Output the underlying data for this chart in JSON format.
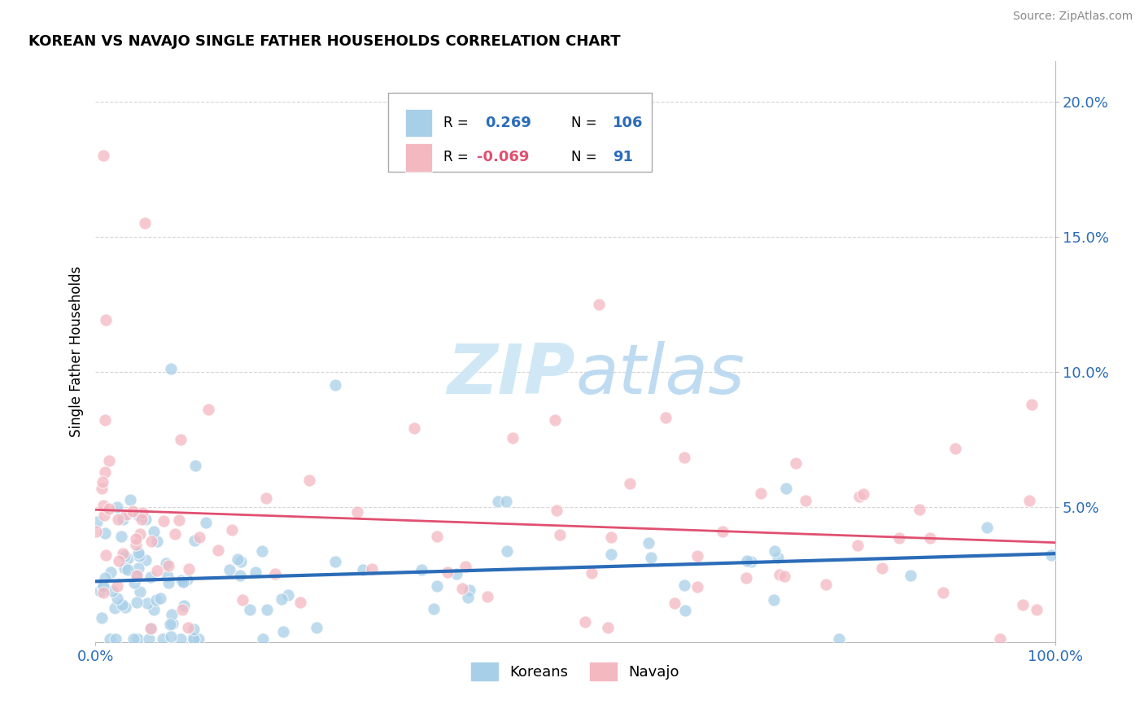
{
  "title": "KOREAN VS NAVAJO SINGLE FATHER HOUSEHOLDS CORRELATION CHART",
  "source": "Source: ZipAtlas.com",
  "ylabel": "Single Father Households",
  "xlim": [
    0.0,
    1.0
  ],
  "ylim": [
    0.0,
    0.215
  ],
  "korean_R": 0.269,
  "korean_N": 106,
  "navajo_R": -0.069,
  "navajo_N": 91,
  "korean_color": "#a8cfe8",
  "navajo_color": "#f4b8c1",
  "korean_line_color": "#2b6cb8",
  "navajo_line_color": "#e05070",
  "background_color": "#ffffff",
  "grid_color": "#cccccc",
  "watermark_color": "#d0e8f5",
  "legend_labels": [
    "Koreans",
    "Navajo"
  ]
}
